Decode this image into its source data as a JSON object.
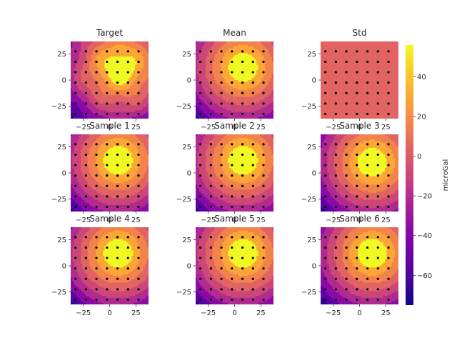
{
  "chart_data": {
    "type": "heatmap",
    "subtype": "filled-contour grid with station markers",
    "panels": [
      {
        "title": "Target",
        "kind": "target",
        "center": [
          10,
          12
        ],
        "scale": 28,
        "peak": 52
      },
      {
        "title": "Mean",
        "kind": "mean",
        "center": [
          8,
          12
        ],
        "scale": 28,
        "peak": 52
      },
      {
        "title": "Std",
        "kind": "std",
        "value": -10
      },
      {
        "title": "Sample 1",
        "kind": "sample",
        "center": [
          8,
          12
        ],
        "scale": 28,
        "peak": 52
      },
      {
        "title": "Sample 2",
        "kind": "sample",
        "center": [
          8,
          12
        ],
        "scale": 28,
        "peak": 52
      },
      {
        "title": "Sample 3",
        "kind": "sample",
        "center": [
          12,
          10
        ],
        "scale": 28,
        "peak": 52
      },
      {
        "title": "Sample 4",
        "kind": "sample",
        "center": [
          8,
          12
        ],
        "scale": 28,
        "peak": 52
      },
      {
        "title": "Sample 5",
        "kind": "sample",
        "center": [
          8,
          12
        ],
        "scale": 28,
        "peak": 52
      },
      {
        "title": "Sample 6",
        "kind": "sample",
        "center": [
          12,
          12
        ],
        "scale": 28,
        "peak": 52
      }
    ],
    "xlim": [
      -37,
      37
    ],
    "ylim": [
      -37,
      37
    ],
    "xticks": [
      -25,
      0,
      25
    ],
    "yticks": [
      25,
      0,
      -25
    ],
    "tick_labels": {
      "x": [
        "−25",
        "0",
        "25"
      ],
      "y": [
        "25",
        "0",
        "−25"
      ]
    },
    "station_grid": [
      -32.5,
      -22.5,
      -12.5,
      -2.5,
      7.5,
      17.5,
      27.5
    ],
    "colorbar": {
      "label": "microGal",
      "range": [
        -75,
        56
      ],
      "ticks": [
        40,
        20,
        0,
        -20,
        -40,
        -60
      ],
      "tick_labels": [
        "40",
        "20",
        "0",
        "−20",
        "−40",
        "−60"
      ],
      "colormap": "plasma"
    },
    "contour_levels": [
      -75,
      -60,
      -45,
      -30,
      -15,
      0,
      15,
      30,
      45,
      56
    ],
    "contour_colors": [
      "#2a0593",
      "#5c01a6",
      "#8b0aa5",
      "#b12a90",
      "#cc4778",
      "#e16462",
      "#f2844b",
      "#fca636",
      "#f0f921"
    ],
    "grid": false
  }
}
